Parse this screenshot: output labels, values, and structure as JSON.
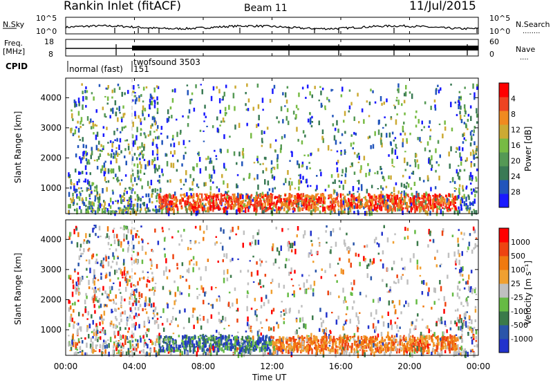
{
  "header": {
    "station": "Rankin Inlet (fitACF)",
    "beam": "Beam 11",
    "date": "11/Jul/2015"
  },
  "noise_panel": {
    "left_label": "N.Sky",
    "right_label": "N.Search",
    "right_dots": "........",
    "y_top": "10^5",
    "y_bottom": "10^0"
  },
  "freq_panel": {
    "left_label_line1": "Freq.",
    "left_label_line2": "[MHz]",
    "left_top": "18",
    "left_bottom": "8",
    "right_label": "Nave",
    "right_dots": "....",
    "right_top": "60",
    "right_bottom": "0"
  },
  "cpid_panel": {
    "label": "CPID",
    "mode1": "normal (fast)",
    "mode2_line1": "twofsound 3503",
    "mode2_line2": "151"
  },
  "chart_data": [
    {
      "type": "heatmap",
      "name": "power",
      "ylabel": "Slant Range [km]",
      "y_ticks": [
        "1000",
        "2000",
        "3000",
        "4000"
      ],
      "colorbar_label": "Power [dB]",
      "colorbar_ticks": [
        "4",
        "8",
        "12",
        "16",
        "20",
        "24",
        "28"
      ],
      "colors": [
        "#1a1aff",
        "#2255bb",
        "#3a7a55",
        "#559955",
        "#77bb44",
        "#ccaa33",
        "#f08a20",
        "#ee4422",
        "#ff0000"
      ]
    },
    {
      "type": "heatmap",
      "name": "velocity",
      "ylabel": "Slant Range [km]",
      "y_ticks": [
        "1000",
        "2000",
        "3000",
        "4000"
      ],
      "colorbar_label": "Velocity [m s⁻¹]",
      "colorbar_ticks": [
        "1000",
        "500",
        "100",
        "25",
        "-25",
        "-100",
        "-500",
        "-1000"
      ],
      "colors": [
        "#2233cc",
        "#2a55aa",
        "#3b7a4a",
        "#66bb44",
        "#c0c0c0",
        "#f0a030",
        "#f07a10",
        "#ee4411",
        "#ff0000"
      ]
    }
  ],
  "x_axis": {
    "label": "Time UT",
    "ticks": [
      "00:00",
      "04:00",
      "08:00",
      "12:00",
      "16:00",
      "20:00",
      "00:00"
    ]
  }
}
